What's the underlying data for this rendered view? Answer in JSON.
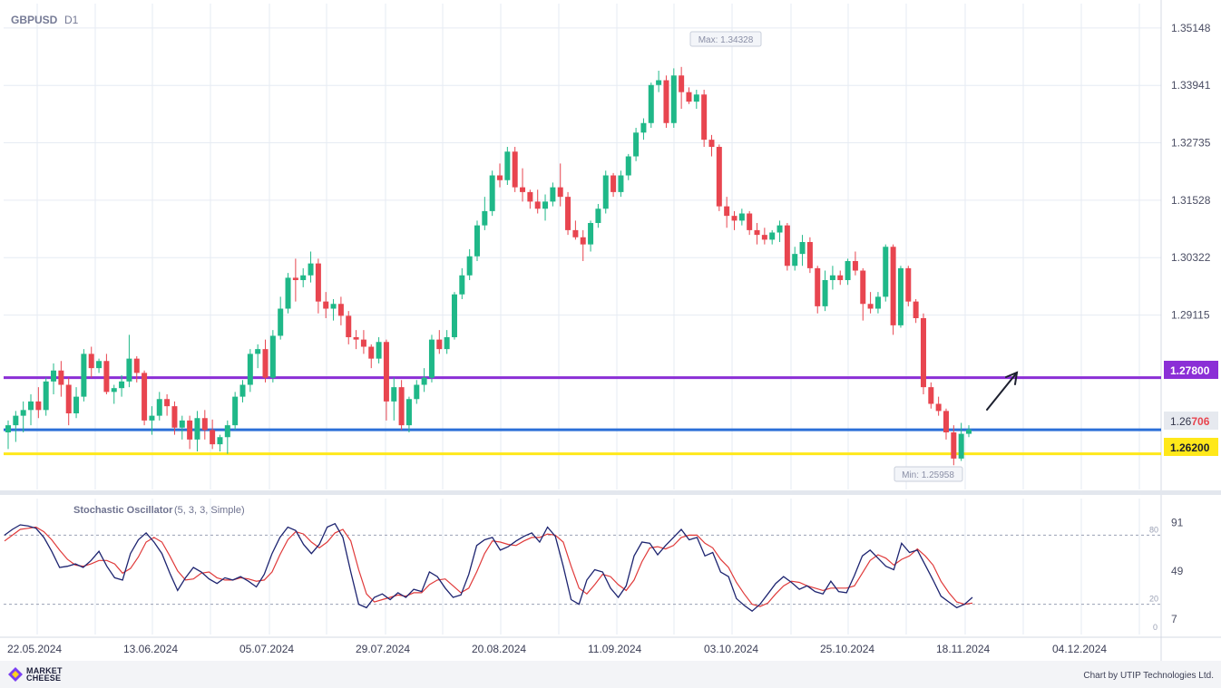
{
  "header": {
    "symbol": "GBPUSD",
    "timeframe": "D1"
  },
  "price_axis": {
    "ticks": [
      "1.35148",
      "1.33941",
      "1.32735",
      "1.31528",
      "1.30322",
      "1.29115"
    ]
  },
  "price_levels": [
    {
      "name": "resistance",
      "value": 1.278,
      "label": "1.27800",
      "color": "#8b2fd6"
    },
    {
      "name": "current",
      "value": 1.26706,
      "label_prefix": "1.26",
      "label_suffix": "706",
      "color": "#2b6fd8"
    },
    {
      "name": "support",
      "value": 1.262,
      "label": "1.26200",
      "color": "#ffe81a"
    }
  ],
  "annotations": {
    "max_label": "Max: 1.34328",
    "min_label": "Min: 1.25958"
  },
  "x_axis": {
    "labels": [
      "22.05.2024",
      "13.06.2024",
      "05.07.2024",
      "29.07.2024",
      "20.08.2024",
      "11.09.2024",
      "03.10.2024",
      "25.10.2024",
      "18.11.2024",
      "04.12.2024"
    ]
  },
  "oscillator": {
    "title": "Stochastic Oscillator",
    "params": "(5, 3, 3, Simple)",
    "axis_ticks": [
      "91",
      "49",
      "7"
    ],
    "levels": [
      "80",
      "20",
      "0"
    ],
    "colors": {
      "k": "#1d2470",
      "d": "#e03a3a"
    }
  },
  "colors": {
    "bull": "#1fb888",
    "bear": "#e8454f",
    "grid": "#e6ebf3"
  },
  "chart_data": {
    "type": "candlestick",
    "ylim": [
      1.2545,
      1.3566
    ],
    "up_color": "#1fb888",
    "down_color": "#e8454f",
    "ohlc": [
      [
        1.2665,
        1.269,
        1.263,
        1.268
      ],
      [
        1.268,
        1.271,
        1.2645,
        1.27
      ],
      [
        1.27,
        1.273,
        1.2665,
        1.2712
      ],
      [
        1.2712,
        1.2745,
        1.268,
        1.273
      ],
      [
        1.273,
        1.276,
        1.2695,
        1.2712
      ],
      [
        1.2712,
        1.278,
        1.27,
        1.2772
      ],
      [
        1.2772,
        1.281,
        1.2745,
        1.2795
      ],
      [
        1.2795,
        1.2815,
        1.274,
        1.2765
      ],
      [
        1.2765,
        1.278,
        1.268,
        1.2705
      ],
      [
        1.2705,
        1.276,
        1.2695,
        1.274
      ],
      [
        1.274,
        1.284,
        1.273,
        1.283
      ],
      [
        1.283,
        1.2845,
        1.278,
        1.28
      ],
      [
        1.28,
        1.282,
        1.279,
        1.2815
      ],
      [
        1.2815,
        1.283,
        1.2745,
        1.275
      ],
      [
        1.275,
        1.2765,
        1.2725,
        1.2758
      ],
      [
        1.2758,
        1.2785,
        1.274,
        1.2772
      ],
      [
        1.2772,
        1.287,
        1.276,
        1.282
      ],
      [
        1.282,
        1.2825,
        1.277,
        1.279
      ],
      [
        1.279,
        1.2795,
        1.268,
        1.269
      ],
      [
        1.269,
        1.272,
        1.266,
        1.27
      ],
      [
        1.27,
        1.275,
        1.269,
        1.2735
      ],
      [
        1.2735,
        1.2745,
        1.27,
        1.272
      ],
      [
        1.272,
        1.273,
        1.266,
        1.2675
      ],
      [
        1.2675,
        1.27,
        1.265,
        1.269
      ],
      [
        1.269,
        1.27,
        1.263,
        1.265
      ],
      [
        1.265,
        1.271,
        1.2625,
        1.2695
      ],
      [
        1.2695,
        1.2712,
        1.265,
        1.267
      ],
      [
        1.267,
        1.2692,
        1.263,
        1.264
      ],
      [
        1.264,
        1.266,
        1.2625,
        1.2655
      ],
      [
        1.2655,
        1.269,
        1.262,
        1.268
      ],
      [
        1.268,
        1.275,
        1.267,
        1.274
      ],
      [
        1.274,
        1.2775,
        1.2728,
        1.2765
      ],
      [
        1.2765,
        1.284,
        1.275,
        1.283
      ],
      [
        1.283,
        1.285,
        1.28,
        1.284
      ],
      [
        1.284,
        1.286,
        1.277,
        1.278
      ],
      [
        1.278,
        1.288,
        1.277,
        1.2868
      ],
      [
        1.2868,
        1.295,
        1.286,
        1.2925
      ],
      [
        1.2925,
        1.3,
        1.2915,
        1.299
      ],
      [
        1.299,
        1.303,
        1.294,
        1.2985
      ],
      [
        1.2985,
        1.301,
        1.297,
        1.2995
      ],
      [
        1.2995,
        1.3045,
        1.298,
        1.302
      ],
      [
        1.302,
        1.303,
        1.2915,
        1.294
      ],
      [
        1.294,
        1.296,
        1.2905,
        1.2925
      ],
      [
        1.2925,
        1.2945,
        1.29,
        1.2935
      ],
      [
        1.2935,
        1.295,
        1.289,
        1.291
      ],
      [
        1.291,
        1.292,
        1.285,
        1.2865
      ],
      [
        1.2865,
        1.288,
        1.284,
        1.286
      ],
      [
        1.286,
        1.288,
        1.283,
        1.2845
      ],
      [
        1.2845,
        1.285,
        1.28,
        1.282
      ],
      [
        1.282,
        1.2865,
        1.281,
        1.2855
      ],
      [
        1.2855,
        1.286,
        1.269,
        1.273
      ],
      [
        1.273,
        1.278,
        1.269,
        1.276
      ],
      [
        1.276,
        1.2775,
        1.267,
        1.268
      ],
      [
        1.268,
        1.274,
        1.2665,
        1.2735
      ],
      [
        1.2735,
        1.2775,
        1.2725,
        1.2765
      ],
      [
        1.2765,
        1.28,
        1.275,
        1.278
      ],
      [
        1.278,
        1.287,
        1.277,
        1.286
      ],
      [
        1.286,
        1.288,
        1.283,
        1.284
      ],
      [
        1.284,
        1.288,
        1.283,
        1.2865
      ],
      [
        1.2865,
        1.296,
        1.286,
        1.2955
      ],
      [
        1.2955,
        1.301,
        1.2945,
        1.2995
      ],
      [
        1.2995,
        1.305,
        1.2985,
        1.3035
      ],
      [
        1.3035,
        1.311,
        1.3025,
        1.31
      ],
      [
        1.31,
        1.316,
        1.309,
        1.313
      ],
      [
        1.313,
        1.3215,
        1.312,
        1.3205
      ],
      [
        1.3205,
        1.323,
        1.318,
        1.3195
      ],
      [
        1.3195,
        1.3265,
        1.3185,
        1.3255
      ],
      [
        1.3255,
        1.3265,
        1.317,
        1.318
      ],
      [
        1.318,
        1.322,
        1.315,
        1.317
      ],
      [
        1.317,
        1.3175,
        1.3135,
        1.315
      ],
      [
        1.315,
        1.3175,
        1.3125,
        1.3135
      ],
      [
        1.3135,
        1.3165,
        1.311,
        1.315
      ],
      [
        1.315,
        1.319,
        1.314,
        1.318
      ],
      [
        1.318,
        1.323,
        1.314,
        1.316
      ],
      [
        1.316,
        1.317,
        1.308,
        1.309
      ],
      [
        1.309,
        1.311,
        1.307,
        1.3075
      ],
      [
        1.3075,
        1.309,
        1.3025,
        1.306
      ],
      [
        1.306,
        1.311,
        1.3045,
        1.3105
      ],
      [
        1.3105,
        1.3145,
        1.3095,
        1.3135
      ],
      [
        1.3135,
        1.3215,
        1.3125,
        1.3205
      ],
      [
        1.3205,
        1.321,
        1.316,
        1.317
      ],
      [
        1.317,
        1.3215,
        1.316,
        1.3205
      ],
      [
        1.3205,
        1.325,
        1.3195,
        1.3245
      ],
      [
        1.3245,
        1.3305,
        1.3235,
        1.3295
      ],
      [
        1.3295,
        1.3325,
        1.328,
        1.3315
      ],
      [
        1.3315,
        1.34,
        1.3305,
        1.3395
      ],
      [
        1.3395,
        1.3425,
        1.338,
        1.3405
      ],
      [
        1.3405,
        1.3415,
        1.3305,
        1.3315
      ],
      [
        1.3315,
        1.343,
        1.3305,
        1.3415
      ],
      [
        1.3415,
        1.3433,
        1.3345,
        1.338
      ],
      [
        1.338,
        1.339,
        1.3355,
        1.336
      ],
      [
        1.336,
        1.3385,
        1.3345,
        1.3375
      ],
      [
        1.3375,
        1.3385,
        1.3265,
        1.328
      ],
      [
        1.328,
        1.329,
        1.3245,
        1.3265
      ],
      [
        1.3265,
        1.327,
        1.313,
        1.314
      ],
      [
        1.314,
        1.316,
        1.3095,
        1.312
      ],
      [
        1.312,
        1.313,
        1.309,
        1.311
      ],
      [
        1.311,
        1.3135,
        1.31,
        1.3125
      ],
      [
        1.3125,
        1.313,
        1.308,
        1.309
      ],
      [
        1.309,
        1.3105,
        1.306,
        1.308
      ],
      [
        1.308,
        1.3095,
        1.306,
        1.307
      ],
      [
        1.307,
        1.309,
        1.306,
        1.3085
      ],
      [
        1.3085,
        1.311,
        1.3065,
        1.31
      ],
      [
        1.31,
        1.3105,
        1.3005,
        1.3015
      ],
      [
        1.3015,
        1.3055,
        1.3005,
        1.304
      ],
      [
        1.304,
        1.308,
        1.3015,
        1.3065
      ],
      [
        1.3065,
        1.3075,
        1.3,
        1.301
      ],
      [
        1.301,
        1.3015,
        1.2915,
        1.293
      ],
      [
        1.293,
        1.3005,
        1.292,
        1.2985
      ],
      [
        1.2985,
        1.3015,
        1.2965,
        1.2995
      ],
      [
        1.2995,
        1.3005,
        1.2975,
        1.2985
      ],
      [
        1.2985,
        1.303,
        1.2975,
        1.3025
      ],
      [
        1.3025,
        1.3045,
        1.2995,
        1.3005
      ],
      [
        1.3005,
        1.301,
        1.29,
        1.2935
      ],
      [
        1.2935,
        1.296,
        1.2915,
        1.2925
      ],
      [
        1.2925,
        1.296,
        1.2915,
        1.295
      ],
      [
        1.295,
        1.306,
        1.294,
        1.3055
      ],
      [
        1.3055,
        1.306,
        1.287,
        1.289
      ],
      [
        1.289,
        1.3015,
        1.2885,
        1.301
      ],
      [
        1.301,
        1.3015,
        1.293,
        1.294
      ],
      [
        1.294,
        1.2945,
        1.2895,
        1.2905
      ],
      [
        1.2905,
        1.2915,
        1.2745,
        1.276
      ],
      [
        1.276,
        1.277,
        1.2715,
        1.2725
      ],
      [
        1.2725,
        1.274,
        1.27,
        1.271
      ],
      [
        1.271,
        1.2715,
        1.265,
        1.2665
      ],
      [
        1.2665,
        1.268,
        1.2596,
        1.261
      ],
      [
        1.261,
        1.2685,
        1.2605,
        1.2662
      ],
      [
        1.2662,
        1.268,
        1.2655,
        1.2671
      ]
    ],
    "stochastic": {
      "k": [
        80,
        85,
        89,
        88,
        86,
        78,
        66,
        52,
        53,
        55,
        52,
        58,
        66,
        53,
        43,
        41,
        64,
        76,
        82,
        74,
        64,
        47,
        32,
        43,
        52,
        48,
        42,
        38,
        43,
        41,
        44,
        40,
        35,
        46,
        64,
        78,
        87,
        84,
        72,
        64,
        72,
        87,
        90,
        78,
        48,
        20,
        17,
        26,
        29,
        24,
        30,
        26,
        33,
        31,
        48,
        44,
        34,
        26,
        28,
        46,
        71,
        76,
        78,
        67,
        70,
        75,
        79,
        82,
        74,
        87,
        79,
        53,
        24,
        20,
        41,
        50,
        48,
        34,
        26,
        36,
        62,
        74,
        73,
        63,
        71,
        78,
        85,
        76,
        78,
        62,
        65,
        48,
        44,
        25,
        19,
        14,
        20,
        29,
        38,
        44,
        39,
        33,
        36,
        31,
        29,
        40,
        31,
        30,
        45,
        62,
        67,
        60,
        53,
        50,
        73,
        65,
        67,
        54,
        41,
        27,
        22,
        17,
        20,
        26
      ],
      "d": [
        75,
        80,
        85,
        86,
        87,
        83,
        76,
        67,
        59,
        54,
        53,
        55,
        58,
        58,
        55,
        47,
        51,
        61,
        74,
        78,
        74,
        62,
        49,
        41,
        42,
        47,
        48,
        43,
        41,
        41,
        43,
        42,
        40,
        41,
        48,
        63,
        76,
        83,
        81,
        74,
        69,
        74,
        82,
        85,
        75,
        50,
        29,
        22,
        24,
        26,
        28,
        27,
        30,
        30,
        37,
        41,
        42,
        36,
        30,
        34,
        48,
        64,
        75,
        74,
        72,
        71,
        75,
        78,
        78,
        81,
        80,
        74,
        53,
        34,
        29,
        37,
        46,
        44,
        37,
        32,
        41,
        57,
        69,
        70,
        68,
        71,
        78,
        80,
        80,
        73,
        69,
        59,
        52,
        39,
        29,
        20,
        18,
        21,
        29,
        36,
        40,
        39,
        36,
        34,
        32,
        34,
        34,
        34,
        36,
        47,
        58,
        63,
        60,
        54,
        59,
        62,
        68,
        62,
        54,
        40,
        30,
        22,
        20,
        21
      ]
    }
  }
}
